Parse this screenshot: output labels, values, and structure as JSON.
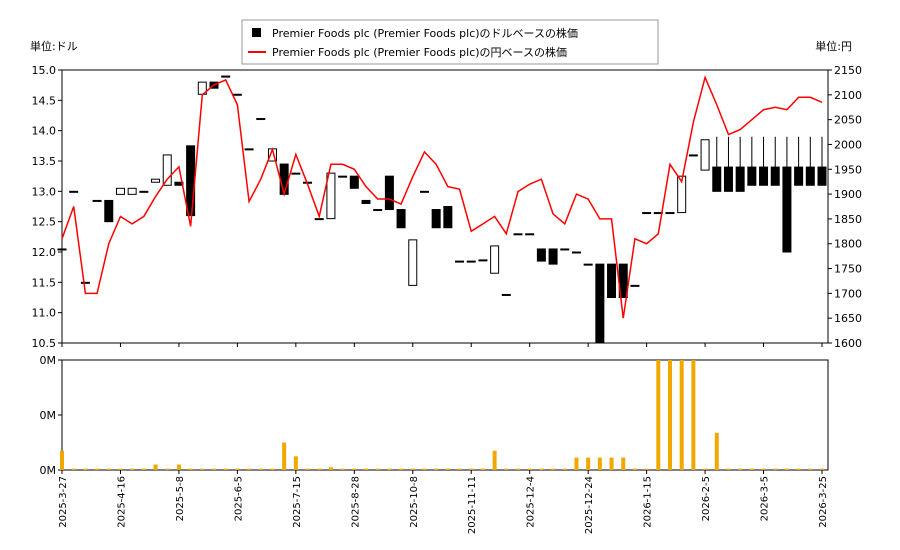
{
  "chart_data": {
    "type": "candlestick",
    "ylabel": "単位:ドル",
    "y2label": "単位:円",
    "categories": [
      "2025-3-27",
      null,
      null,
      null,
      null,
      "2025-4-16",
      null,
      null,
      null,
      null,
      "2025-5-8",
      null,
      null,
      null,
      null,
      "2025-6-5",
      null,
      null,
      null,
      null,
      "2025-7-15",
      null,
      null,
      null,
      null,
      "2025-8-28",
      null,
      null,
      null,
      null,
      "2025-10-8",
      null,
      null,
      null,
      null,
      "2025-11-11",
      null,
      null,
      null,
      null,
      "2025-12-4",
      null,
      null,
      null,
      null,
      "2025-12-24",
      null,
      null,
      null,
      null,
      "2026-1-15",
      null,
      null,
      null,
      null,
      "2026-2-5",
      null,
      null,
      null,
      null,
      "2026-3-5",
      null,
      null,
      null,
      null,
      "2026-3-25"
    ],
    "series": [
      {
        "name": "Premier Foods plc (Premier Foods plc)のドルベースの株価",
        "color": "#000000",
        "open": [
          12.05,
          13.0,
          11.5,
          12.85,
          12.85,
          12.95,
          12.95,
          13.0,
          13.15,
          13.1,
          13.15,
          13.75,
          14.6,
          14.8,
          14.9,
          14.6,
          13.7,
          14.2,
          13.5,
          13.45,
          13.3,
          13.15,
          12.55,
          12.55,
          13.25,
          13.25,
          12.85,
          12.7,
          13.25,
          12.7,
          11.45,
          13.0,
          12.7,
          12.75,
          11.85,
          11.85,
          11.87,
          11.65,
          11.3,
          12.3,
          12.3,
          12.05,
          12.05,
          12.05,
          12.0,
          11.8,
          11.8,
          11.8,
          11.8,
          11.45,
          12.65,
          12.65,
          12.65,
          12.65,
          13.6,
          13.35,
          13.4,
          13.4,
          13.4,
          13.4,
          13.4,
          13.4,
          13.4,
          13.4,
          13.4,
          13.4
        ],
        "high": [
          12.05,
          13.0,
          11.5,
          12.85,
          12.85,
          13.05,
          13.05,
          13.0,
          13.2,
          13.6,
          13.15,
          13.75,
          14.8,
          14.8,
          14.9,
          14.6,
          13.7,
          14.2,
          13.7,
          13.45,
          13.3,
          13.15,
          12.55,
          13.3,
          13.25,
          13.25,
          12.85,
          12.7,
          13.25,
          12.7,
          12.2,
          13.0,
          12.7,
          12.75,
          11.85,
          11.85,
          11.87,
          12.1,
          11.3,
          12.3,
          12.3,
          12.05,
          12.05,
          12.05,
          12.0,
          11.8,
          11.8,
          11.8,
          11.8,
          11.45,
          12.65,
          12.65,
          12.65,
          13.25,
          13.6,
          13.85,
          13.9,
          13.9,
          13.9,
          13.9,
          13.9,
          13.9,
          13.9,
          13.9,
          13.9,
          13.9
        ],
        "low": [
          12.05,
          13.0,
          11.5,
          12.85,
          12.5,
          12.95,
          12.95,
          13.0,
          13.15,
          13.1,
          13.1,
          12.6,
          14.6,
          14.7,
          14.9,
          14.6,
          13.7,
          14.2,
          13.5,
          12.95,
          13.3,
          13.15,
          12.55,
          12.55,
          13.25,
          13.05,
          12.8,
          12.7,
          12.7,
          12.4,
          11.45,
          13.0,
          12.4,
          12.4,
          11.85,
          11.85,
          11.87,
          11.65,
          11.3,
          12.3,
          12.3,
          11.85,
          11.8,
          12.05,
          12.0,
          11.8,
          10.5,
          11.25,
          11.25,
          11.45,
          12.65,
          12.65,
          12.65,
          12.65,
          13.6,
          13.35,
          13.0,
          13.0,
          13.0,
          13.1,
          13.1,
          13.1,
          12.0,
          13.1,
          13.1,
          13.1
        ],
        "close": [
          12.05,
          13.0,
          11.5,
          12.85,
          12.5,
          13.05,
          13.05,
          13.0,
          13.2,
          13.6,
          13.1,
          12.6,
          14.8,
          14.7,
          14.9,
          14.6,
          13.7,
          14.2,
          13.7,
          12.95,
          13.3,
          13.15,
          12.55,
          13.3,
          13.25,
          13.05,
          12.8,
          12.7,
          12.7,
          12.4,
          12.2,
          13.0,
          12.4,
          12.4,
          11.85,
          11.85,
          11.87,
          12.1,
          11.3,
          12.3,
          12.3,
          11.85,
          11.8,
          12.05,
          12.0,
          11.8,
          10.5,
          11.25,
          11.25,
          11.45,
          12.65,
          12.65,
          12.65,
          13.25,
          13.6,
          13.85,
          13.0,
          13.0,
          13.0,
          13.1,
          13.1,
          13.1,
          12.0,
          13.1,
          13.1,
          13.1
        ]
      },
      {
        "name": "Premier Foods plc (Premier Foods plc)の円ベースの株価",
        "color": "#ff0000",
        "axis": "y2",
        "values": [
          1810,
          1875,
          1700,
          1700,
          1800,
          1855,
          1840,
          1855,
          1895,
          1930,
          1955,
          1835,
          2100,
          2120,
          2130,
          2080,
          1885,
          1930,
          1990,
          1900,
          1980,
          1920,
          1855,
          1960,
          1960,
          1950,
          1915,
          1890,
          1890,
          1880,
          1935,
          1985,
          1960,
          1915,
          1910,
          1825,
          1840,
          1855,
          1820,
          1905,
          1920,
          1930,
          1860,
          1840,
          1900,
          1890,
          1850,
          1850,
          1650,
          1810,
          1800,
          1820,
          1960,
          1925,
          2045,
          2135,
          2080,
          2020,
          2030,
          2050,
          2070,
          2075,
          2070,
          2095,
          2095,
          2085
        ]
      }
    ],
    "ylim": [
      10.5,
      15
    ],
    "yticks": [
      10.5,
      {
        "value": 11,
        "label": "11.0"
      },
      11.5,
      {
        "value": 12,
        "label": "12.0"
      },
      12.5,
      {
        "value": 13,
        "label": "13.0"
      },
      13.5,
      {
        "value": 14,
        "label": "14.0"
      },
      14.5,
      {
        "value": 15,
        "label": "15.0"
      }
    ],
    "y2lim": [
      1600,
      2150
    ],
    "y2ticks": [
      1600,
      1650,
      1700,
      1750,
      1800,
      1850,
      1900,
      1950,
      2000,
      2050,
      2100,
      2150
    ],
    "volume": {
      "color": "#f0a800",
      "values": [
        0.07,
        0.005,
        0.005,
        0.005,
        0.005,
        0.005,
        0.005,
        0.005,
        0.02,
        0.005,
        0.02,
        0.005,
        0.005,
        0.005,
        0.005,
        0.005,
        0.005,
        0.005,
        0.005,
        0.1,
        0.05,
        0.005,
        0.005,
        0.01,
        0.005,
        0.005,
        0.005,
        0.005,
        0.005,
        0.005,
        0.005,
        0.005,
        0.005,
        0.005,
        0.005,
        0.005,
        0.005,
        0.07,
        0.005,
        0.005,
        0.005,
        0.005,
        0.005,
        0.005,
        0.045,
        0.045,
        0.045,
        0.045,
        0.045,
        0.005,
        0.005,
        0.4,
        0.4,
        0.4,
        0.4,
        0.005,
        0.135,
        0.005,
        0.005,
        0.005,
        0.005,
        0.005,
        0.005,
        0.005,
        0.005,
        0.005
      ],
      "ylim": [
        0,
        0.4
      ],
      "yticks": [
        {
          "value": 0,
          "label": "0M"
        },
        {
          "value": 0.2,
          "label": "0M"
        },
        {
          "value": 0.4,
          "label": "0M"
        }
      ]
    }
  }
}
